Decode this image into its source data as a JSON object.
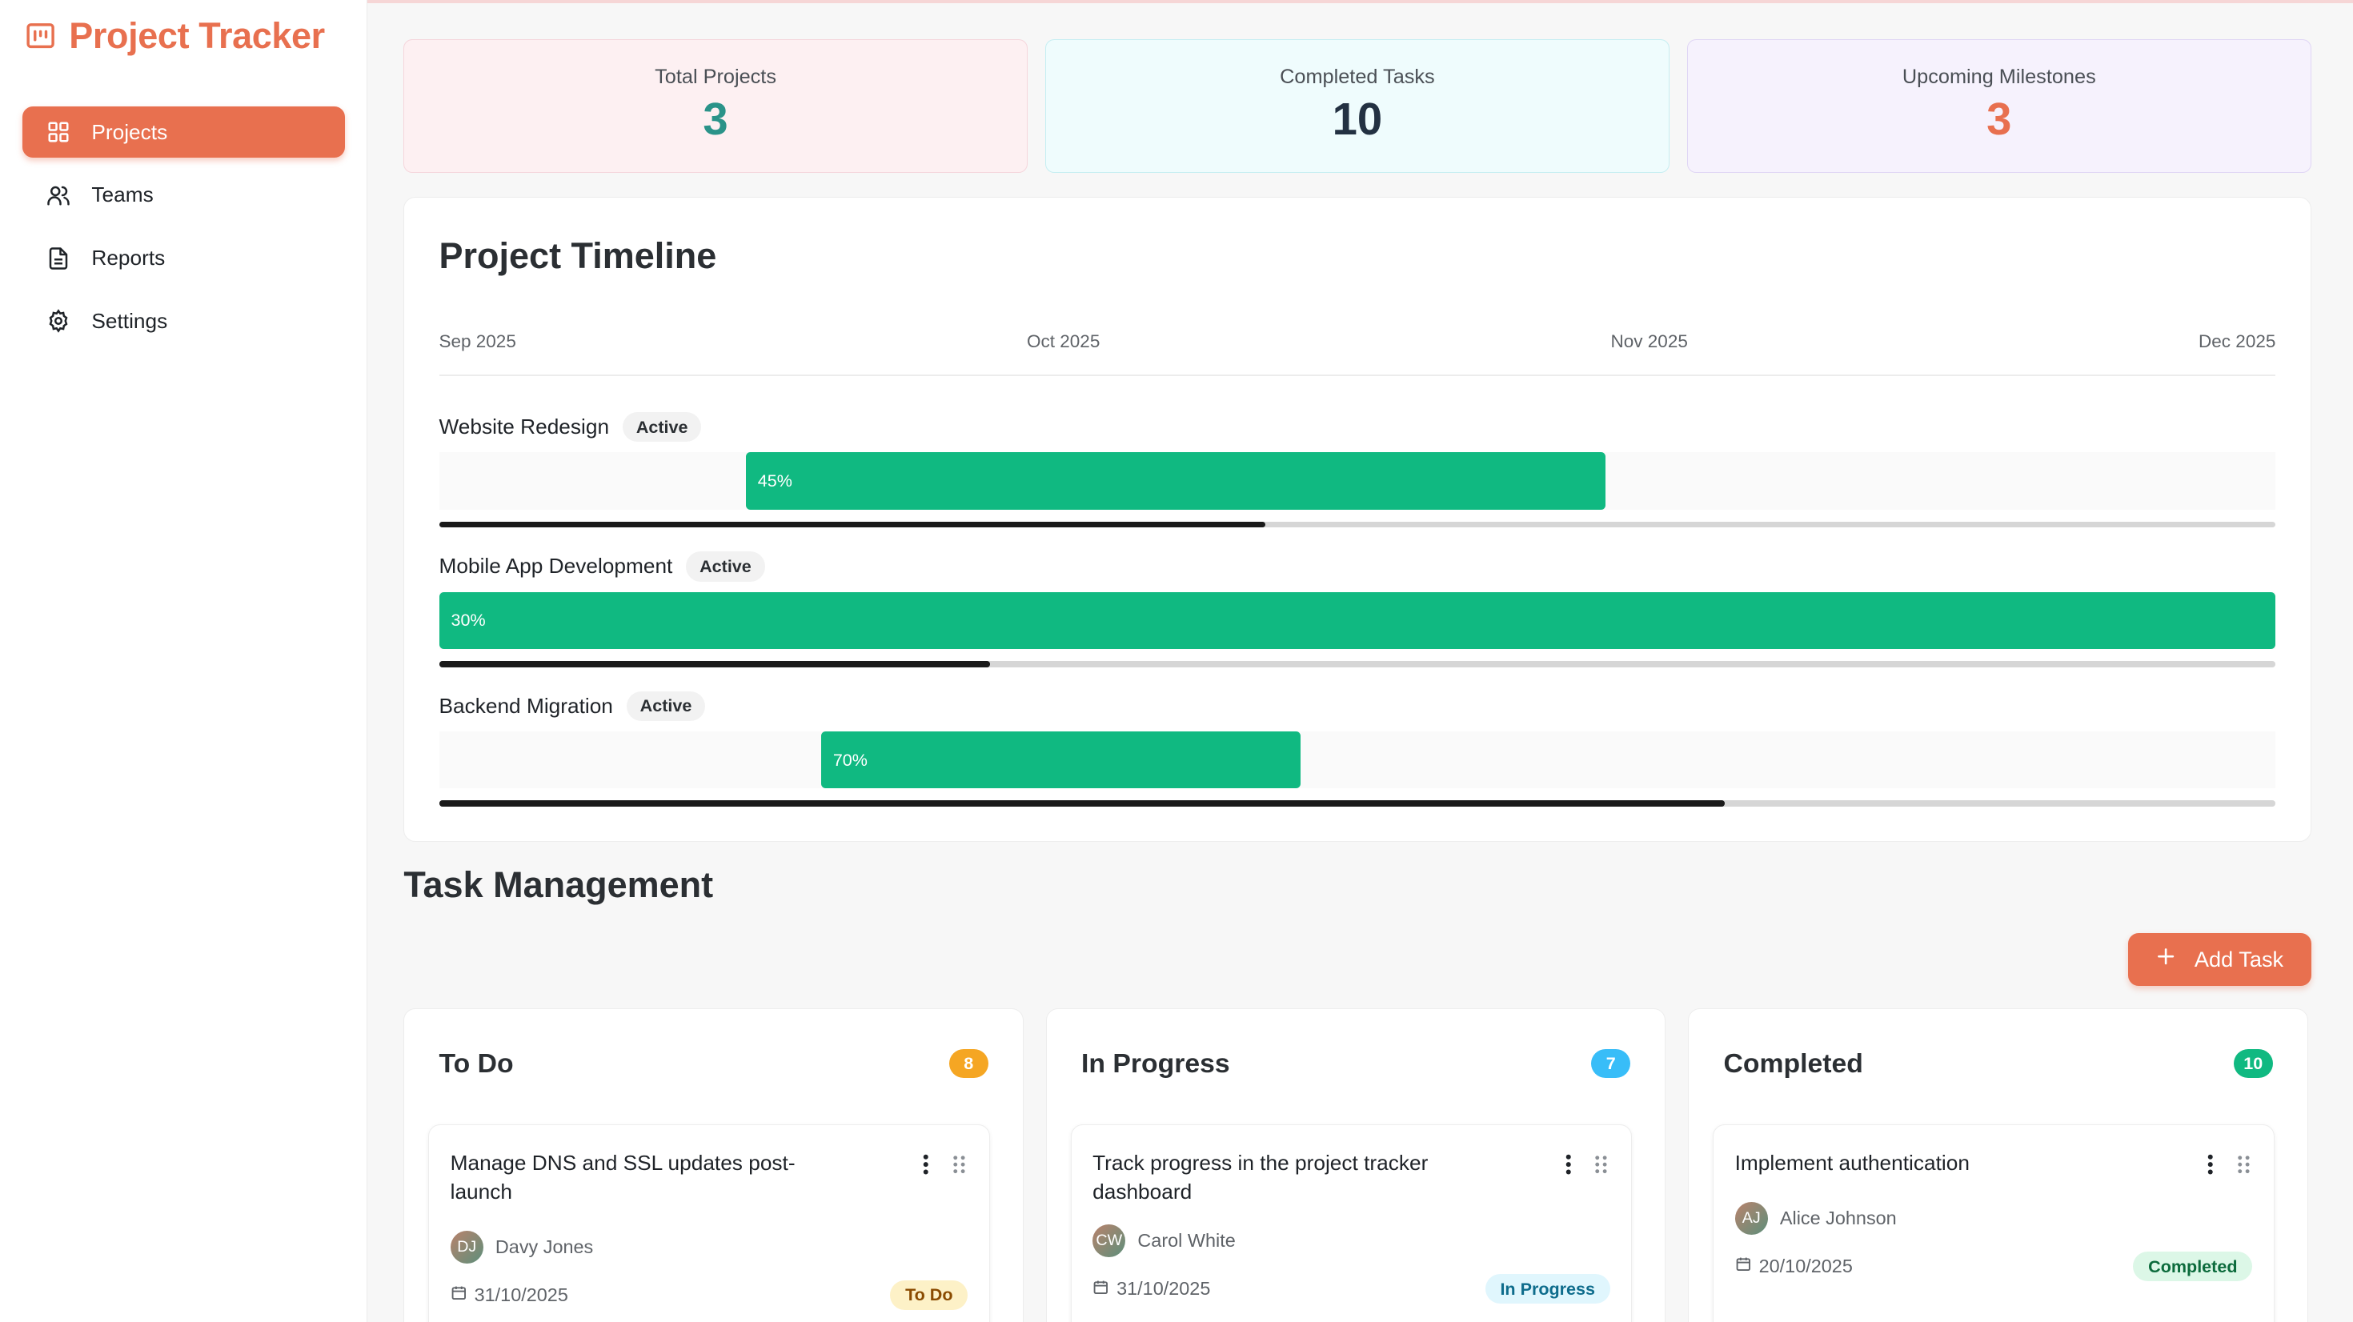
{
  "app": {
    "title": "Project Tracker"
  },
  "sidebar": {
    "items": [
      {
        "label": "Projects",
        "icon": "grid-icon",
        "active": true
      },
      {
        "label": "Teams",
        "icon": "users-icon",
        "active": false
      },
      {
        "label": "Reports",
        "icon": "file-text-icon",
        "active": false
      },
      {
        "label": "Settings",
        "icon": "gear-icon",
        "active": false
      }
    ]
  },
  "stats": [
    {
      "label": "Total Projects",
      "value": "3",
      "color": "#2a9389"
    },
    {
      "label": "Completed Tasks",
      "value": "10",
      "color": "#233142"
    },
    {
      "label": "Upcoming Milestones",
      "value": "3",
      "color": "#e8704f"
    }
  ],
  "timeline": {
    "title": "Project Timeline",
    "months": [
      "Sep 2025",
      "Oct 2025",
      "Nov 2025",
      "Dec 2025"
    ],
    "projects": [
      {
        "name": "Website Redesign",
        "status": "Active",
        "bar_label": "45%",
        "progress": 0.45,
        "bar_start": 0.167,
        "bar_end": 0.635
      },
      {
        "name": "Mobile App Development",
        "status": "Active",
        "bar_label": "30%",
        "progress": 0.3,
        "bar_start": 0.0,
        "bar_end": 1.0
      },
      {
        "name": "Backend Migration",
        "status": "Active",
        "bar_label": "70%",
        "progress": 0.7,
        "bar_start": 0.208,
        "bar_end": 0.469
      }
    ]
  },
  "tasks": {
    "section_title": "Task Management",
    "add_button": "Add Task",
    "columns": [
      {
        "title": "To Do",
        "count": "8",
        "count_color": "#f5a623",
        "task": {
          "title": "Manage DNS and SSL updates post-launch",
          "assignee_initials": "DJ",
          "assignee": "Davy Jones",
          "date": "31/10/2025",
          "status": "To Do"
        }
      },
      {
        "title": "In Progress",
        "count": "7",
        "count_color": "#38bdf8",
        "task": {
          "title": "Track progress in the project tracker dashboard",
          "assignee_initials": "CW",
          "assignee": "Carol White",
          "date": "31/10/2025",
          "status": "In Progress"
        }
      },
      {
        "title": "Completed",
        "count": "10",
        "count_color": "#10b981",
        "task": {
          "title": "Implement authentication",
          "assignee_initials": "AJ",
          "assignee": "Alice Johnson",
          "date": "20/10/2025",
          "status": "Completed"
        }
      }
    ]
  },
  "colors": {
    "accent": "#e8704f",
    "bar": "#10b981"
  }
}
